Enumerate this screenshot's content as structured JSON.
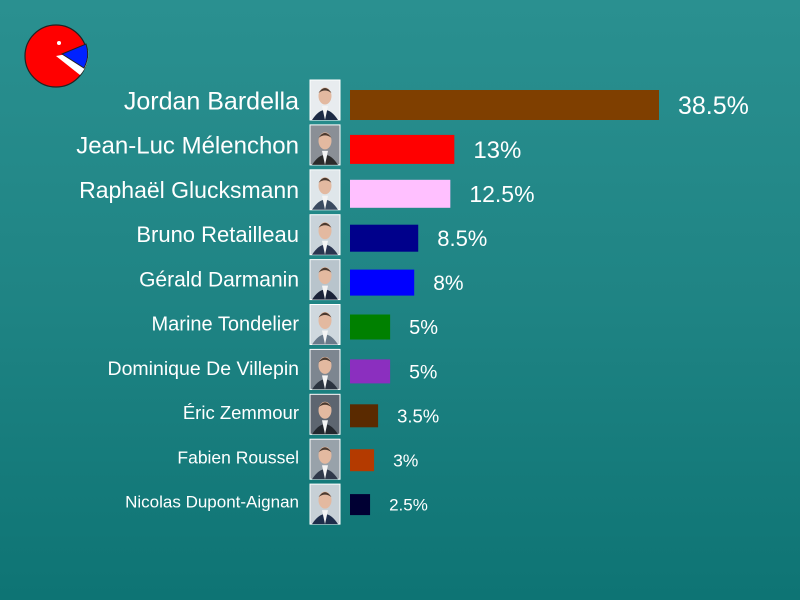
{
  "chart_data": {
    "type": "bar",
    "orientation": "horizontal",
    "categories": [
      "Jordan Bardella",
      "Jean-Luc Mélenchon",
      "Raphaël Glucksmann",
      "Bruno Retailleau",
      "Gérald Darmanin",
      "Marine Tondelier",
      "Dominique De Villepin",
      "Éric Zemmour",
      "Fabien Roussel",
      "Nicolas Dupont-Aignan"
    ],
    "values": [
      38.5,
      13,
      12.5,
      8.5,
      8,
      5,
      5,
      3.5,
      3,
      2.5
    ],
    "value_labels": [
      "38.5%",
      "13%",
      "12.5%",
      "8.5%",
      "8%",
      "5%",
      "5%",
      "3.5%",
      "3%",
      "2.5%"
    ],
    "colors": [
      "#7f3f00",
      "#ff0000",
      "#ffc0ff",
      "#00008b",
      "#0000ff",
      "#008000",
      "#8b2fbf",
      "#5a2a00",
      "#b43a00",
      "#000033"
    ],
    "unit": "%",
    "legend": "none",
    "grid": false
  },
  "logo": {
    "icon": "pie-chart-logo-icon",
    "colors": [
      "#ff0000",
      "#0000ff"
    ]
  },
  "photo_icon": "candidate-portrait-icon"
}
